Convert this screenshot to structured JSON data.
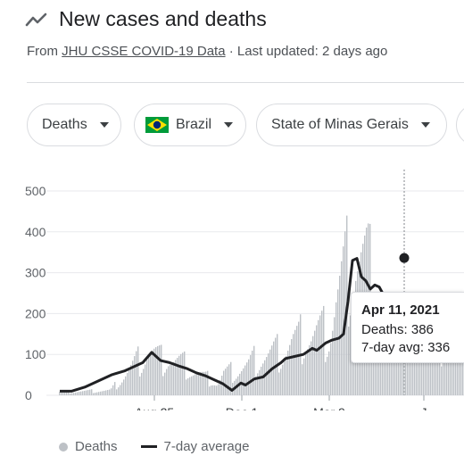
{
  "header": {
    "title": "New cases and deaths",
    "source_prefix": "From ",
    "source_link": "JHU CSSE COVID-19 Data",
    "source_suffix": " · Last updated: 2 days ago"
  },
  "filters": {
    "metric": "Deaths",
    "country": "Brazil",
    "region": "State of Minas Gerais"
  },
  "tooltip": {
    "date": "Apr 11, 2021",
    "deaths_text": "Deaths: 386",
    "avg_text": "7-day avg: 336"
  },
  "legend": {
    "bars_label": "Deaths",
    "line_label": "7-day average"
  },
  "colors": {
    "bars": "#bdc1c6",
    "line": "#202124",
    "grid": "#e8eaed",
    "flag_green": "#009b3a",
    "flag_yellow": "#fedf00",
    "flag_blue": "#002776"
  },
  "chart_data": {
    "type": "bar",
    "ylim": [
      0,
      550
    ],
    "y_ticks": [
      0,
      100,
      200,
      300,
      400,
      500
    ],
    "x_tick_labels": [
      "Aug 25",
      "Dec 1",
      "Mar 9",
      "J"
    ],
    "x_tick_days": [
      173,
      271,
      369,
      475
    ],
    "series": [
      {
        "name": "Deaths",
        "kind": "bar",
        "weekly_days": [
          124,
          131,
          138,
          145,
          152,
          159,
          166,
          173,
          180,
          187,
          194,
          201,
          208,
          215,
          222,
          229,
          236,
          243,
          250,
          257,
          264,
          271,
          278,
          285,
          292,
          299,
          306,
          313,
          320,
          327,
          334,
          341,
          348,
          355,
          362,
          369,
          376,
          383,
          390,
          397,
          404,
          411,
          418,
          425,
          432
        ],
        "weekly_peak_values": [
          20,
          45,
          70,
          95,
          120,
          140,
          165,
          150,
          130,
          145,
          125,
          120,
          110,
          90,
          80,
          65,
          60,
          40,
          80,
          85,
          90,
          100,
          110,
          130,
          140,
          145,
          155,
          160,
          175,
          200,
          200,
          230,
          220,
          230,
          230,
          240,
          350,
          420,
          480,
          510,
          500,
          480,
          390,
          350,
          300
        ]
      },
      {
        "name": "7-day average",
        "kind": "line",
        "days": [
          67,
          80,
          95,
          110,
          125,
          140,
          150,
          160,
          170,
          180,
          190,
          200,
          210,
          220,
          230,
          240,
          250,
          260,
          270,
          275,
          285,
          295,
          305,
          315,
          320,
          330,
          340,
          350,
          355,
          365,
          372,
          380,
          385,
          390,
          395,
          400,
          405,
          410,
          415,
          420,
          425,
          430,
          436,
          440,
          445,
          450,
          455,
          460,
          465,
          470,
          475,
          480,
          485,
          490,
          495,
          500,
          505,
          510,
          520
        ],
        "values": [
          10,
          10,
          20,
          35,
          50,
          60,
          70,
          80,
          105,
          85,
          80,
          72,
          65,
          55,
          48,
          38,
          28,
          12,
          30,
          25,
          40,
          45,
          65,
          80,
          90,
          95,
          100,
          115,
          110,
          128,
          135,
          140,
          150,
          230,
          330,
          335,
          290,
          280,
          260,
          270,
          265,
          245,
          250,
          238,
          230,
          215,
          210,
          222,
          200,
          195,
          197,
          200,
          185,
          190,
          198,
          205,
          200,
          190,
          185
        ]
      }
    ],
    "highlight": {
      "date": "Apr 11, 2021",
      "deaths": 386,
      "avg": 336,
      "day": 453
    }
  }
}
